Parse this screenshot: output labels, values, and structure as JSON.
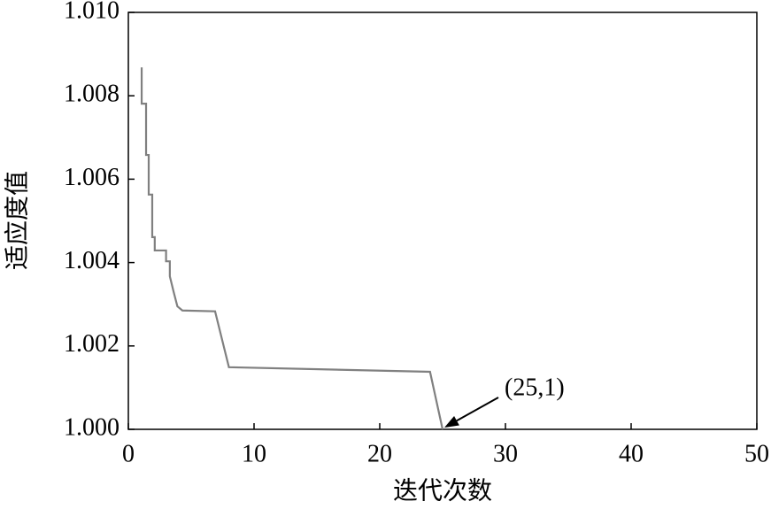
{
  "chart_data": {
    "type": "line",
    "xlabel": "迭代次数",
    "ylabel": "适应度值",
    "x": [
      1.06,
      1.06,
      1.41,
      1.41,
      1.62,
      1.62,
      1.9,
      1.9,
      2.1,
      2.1,
      3.0,
      3.0,
      3.3,
      3.3,
      3.6,
      3.9,
      4.3,
      6.9,
      8.0,
      24.0,
      25
    ],
    "series": [
      {
        "color": "#808080",
        "values": [
          1.00868,
          1.00781,
          1.00781,
          1.00658,
          1.00658,
          1.00563,
          1.00563,
          1.00461,
          1.00461,
          1.00429,
          1.00429,
          1.00403,
          1.00403,
          1.00367,
          1.0033,
          1.00295,
          1.00285,
          1.00283,
          1.00149,
          1.00138,
          1.0
        ]
      }
    ],
    "xlim": [
      0,
      50
    ],
    "xticks": [
      0,
      10,
      20,
      30,
      40,
      50
    ],
    "ylim": [
      1.0,
      1.01
    ],
    "yticks": [
      {
        "value": 1.0,
        "label": "1.000"
      },
      {
        "value": 1.002,
        "label": "1.002"
      },
      {
        "value": 1.004,
        "label": "1.004"
      },
      {
        "value": 1.006,
        "label": "1.006"
      },
      {
        "value": 1.008,
        "label": "1.008"
      },
      {
        "value": 1.01,
        "label": "1.010"
      }
    ],
    "annotation": "(25,1)"
  }
}
